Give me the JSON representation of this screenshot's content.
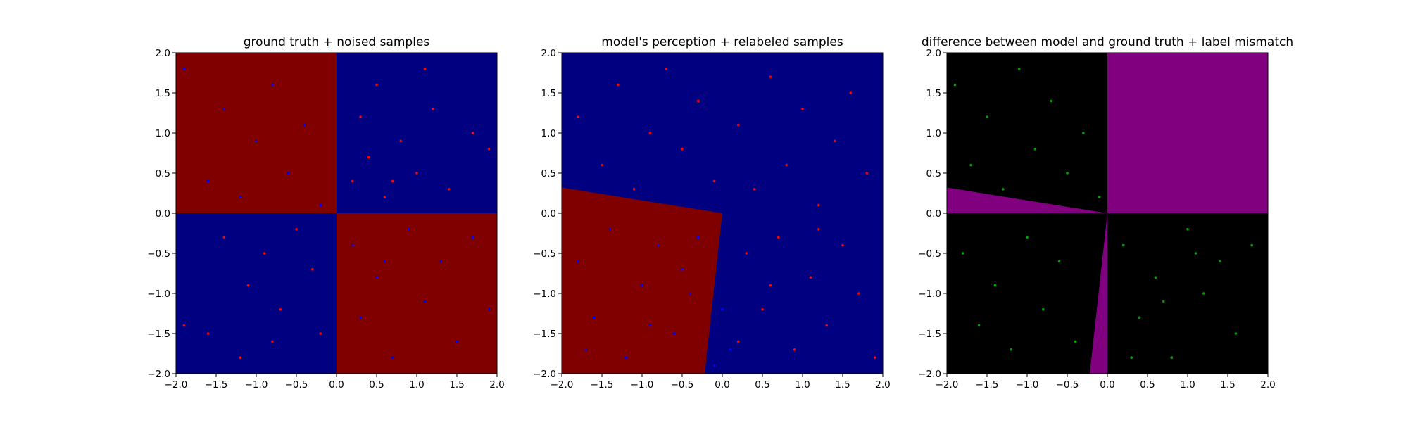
{
  "figure": {
    "background": "#ffffff",
    "ticks": [
      -2.0,
      -1.5,
      -1.0,
      -0.5,
      0.0,
      0.5,
      1.0,
      1.5,
      2.0
    ],
    "tick_labels": [
      "−2.0",
      "−1.5",
      "−1.0",
      "−0.5",
      "0.0",
      "0.5",
      "1.0",
      "1.5",
      "2.0"
    ]
  },
  "chart_data": [
    {
      "type": "scatter",
      "subtype": "decision-region-map with scatter overlay",
      "title": "ground truth + noised samples",
      "xlim": [
        -2.0,
        2.0
      ],
      "ylim": [
        -2.0,
        2.0
      ],
      "grid": false,
      "legend": "none",
      "background_regions": {
        "colors": {
          "red": "#800000",
          "blue": "#000080"
        },
        "rule": "XOR quadrants",
        "regions": [
          {
            "quadrant": "x<0, y>0",
            "color": "red"
          },
          {
            "quadrant": "x>0, y>0",
            "color": "blue"
          },
          {
            "quadrant": "x<0, y<0",
            "color": "blue"
          },
          {
            "quadrant": "x>0, y<0",
            "color": "red"
          }
        ]
      },
      "series": [
        {
          "color": "#ff0000",
          "marker_size": "small",
          "points": [
            [
              -1.9,
              -1.4
            ],
            [
              -1.6,
              -1.5
            ],
            [
              -1.4,
              -0.3
            ],
            [
              -1.2,
              -1.8
            ],
            [
              -1.1,
              -0.9
            ],
            [
              -0.9,
              -0.5
            ],
            [
              -0.8,
              -1.6
            ],
            [
              -0.7,
              -1.2
            ],
            [
              -0.5,
              -0.2
            ],
            [
              -0.3,
              -0.7
            ],
            [
              -0.2,
              -1.5
            ],
            [
              0.2,
              0.4
            ],
            [
              0.3,
              1.2
            ],
            [
              0.4,
              0.7
            ],
            [
              0.5,
              1.6
            ],
            [
              0.6,
              0.2
            ],
            [
              0.8,
              0.9
            ],
            [
              1.0,
              0.5
            ],
            [
              1.2,
              1.3
            ],
            [
              1.4,
              0.3
            ],
            [
              1.7,
              1.0
            ],
            [
              1.9,
              0.8
            ],
            [
              1.1,
              1.8
            ],
            [
              0.7,
              0.4
            ]
          ]
        },
        {
          "color": "#0000ff",
          "marker_size": "small",
          "points": [
            [
              -1.9,
              1.8
            ],
            [
              -1.6,
              0.4
            ],
            [
              -1.4,
              1.3
            ],
            [
              -1.2,
              0.2
            ],
            [
              -1.0,
              0.9
            ],
            [
              -0.8,
              1.6
            ],
            [
              -0.6,
              0.5
            ],
            [
              -0.4,
              1.1
            ],
            [
              -0.2,
              0.1
            ],
            [
              0.2,
              -0.4
            ],
            [
              0.3,
              -1.3
            ],
            [
              0.5,
              -0.8
            ],
            [
              0.7,
              -1.8
            ],
            [
              0.9,
              -0.2
            ],
            [
              1.1,
              -1.1
            ],
            [
              1.3,
              -0.6
            ],
            [
              1.5,
              -1.6
            ],
            [
              1.7,
              -0.3
            ],
            [
              1.9,
              -1.2
            ],
            [
              0.6,
              -0.6
            ]
          ]
        }
      ]
    },
    {
      "type": "scatter",
      "subtype": "decision-region-map with scatter overlay",
      "title": "model's perception + relabeled samples",
      "xlim": [
        -2.0,
        2.0
      ],
      "ylim": [
        -2.0,
        2.0
      ],
      "grid": false,
      "legend": "none",
      "background_regions": {
        "colors": {
          "red": "#800000",
          "blue": "#000080"
        },
        "rule": "red wedge in lower-left bounded by two lines through (0,0)",
        "red_region_boundary": [
          [
            -2.0,
            0.32
          ],
          [
            0.0,
            0.0
          ],
          [
            -0.22,
            -2.0
          ]
        ],
        "rest": "blue"
      },
      "series": [
        {
          "color": "#ff0000",
          "marker_size": "small",
          "points": [
            [
              -1.8,
              1.2
            ],
            [
              -1.5,
              0.6
            ],
            [
              -1.3,
              1.6
            ],
            [
              -1.1,
              0.3
            ],
            [
              -0.9,
              1.0
            ],
            [
              -0.7,
              1.8
            ],
            [
              -0.5,
              0.8
            ],
            [
              -0.3,
              1.4
            ],
            [
              -0.1,
              0.4
            ],
            [
              0.2,
              1.1
            ],
            [
              0.4,
              0.3
            ],
            [
              0.6,
              1.7
            ],
            [
              0.8,
              0.6
            ],
            [
              1.0,
              1.3
            ],
            [
              1.2,
              0.1
            ],
            [
              1.4,
              0.9
            ],
            [
              1.6,
              1.5
            ],
            [
              1.8,
              0.5
            ],
            [
              0.3,
              -0.5
            ],
            [
              0.5,
              -1.2
            ],
            [
              0.7,
              -0.3
            ],
            [
              0.9,
              -1.7
            ],
            [
              1.1,
              -0.8
            ],
            [
              1.3,
              -1.4
            ],
            [
              1.5,
              -0.4
            ],
            [
              1.7,
              -1.0
            ],
            [
              1.9,
              -1.8
            ],
            [
              0.2,
              -1.6
            ],
            [
              0.6,
              -0.9
            ],
            [
              1.2,
              -0.2
            ]
          ]
        },
        {
          "color": "#0000ff",
          "marker_size": "small",
          "points": [
            [
              -1.8,
              -0.6
            ],
            [
              -1.6,
              -1.3
            ],
            [
              -1.4,
              -0.2
            ],
            [
              -1.2,
              -1.8
            ],
            [
              -1.0,
              -0.9
            ],
            [
              -0.8,
              -0.4
            ],
            [
              -0.6,
              -1.5
            ],
            [
              -0.4,
              -1.0
            ],
            [
              -0.3,
              -0.3
            ],
            [
              -0.1,
              -1.9
            ],
            [
              -1.7,
              -1.7
            ],
            [
              -0.9,
              -1.4
            ],
            [
              0.0,
              -1.2
            ],
            [
              0.1,
              -1.7
            ],
            [
              -0.5,
              -0.7
            ]
          ]
        }
      ]
    },
    {
      "type": "scatter",
      "subtype": "difference map with scatter overlay",
      "title": "difference between model and ground truth + label mismatch",
      "xlim": [
        -2.0,
        2.0
      ],
      "ylim": [
        -2.0,
        2.0
      ],
      "grid": false,
      "legend": "none",
      "background_regions": {
        "colors": {
          "mismatch": "#800080",
          "match": "#000000"
        },
        "regions": [
          {
            "region": "upper-right quadrant (x>0, y>0)",
            "color": "mismatch"
          },
          {
            "region": "thin wedge between y=0 and line to (-2.0, 0.32) for x<0",
            "color": "mismatch"
          },
          {
            "region": "thin wedge between x=0 and line to (-0.22, -2.0) for y<0",
            "color": "mismatch"
          },
          {
            "region": "everything else",
            "color": "match"
          }
        ]
      },
      "series": [
        {
          "color": "#00a000",
          "marker_size": "small",
          "points": [
            [
              -1.9,
              1.6
            ],
            [
              -1.7,
              0.6
            ],
            [
              -1.5,
              1.2
            ],
            [
              -1.3,
              0.3
            ],
            [
              -1.1,
              1.8
            ],
            [
              -0.9,
              0.8
            ],
            [
              -0.7,
              1.4
            ],
            [
              -0.5,
              0.5
            ],
            [
              -0.3,
              1.0
            ],
            [
              -0.1,
              0.2
            ],
            [
              -1.8,
              -0.5
            ],
            [
              -1.6,
              -1.4
            ],
            [
              -1.4,
              -0.9
            ],
            [
              -1.2,
              -1.7
            ],
            [
              -1.0,
              -0.3
            ],
            [
              -0.8,
              -1.2
            ],
            [
              -0.6,
              -0.6
            ],
            [
              -0.4,
              -1.6
            ],
            [
              0.2,
              -0.4
            ],
            [
              0.4,
              -1.3
            ],
            [
              0.6,
              -0.8
            ],
            [
              0.8,
              -1.8
            ],
            [
              1.0,
              -0.2
            ],
            [
              1.2,
              -1.0
            ],
            [
              1.4,
              -0.6
            ],
            [
              1.6,
              -1.5
            ],
            [
              1.8,
              -0.4
            ],
            [
              0.3,
              -1.8
            ],
            [
              0.7,
              -1.1
            ],
            [
              1.1,
              -0.5
            ]
          ]
        }
      ]
    }
  ]
}
